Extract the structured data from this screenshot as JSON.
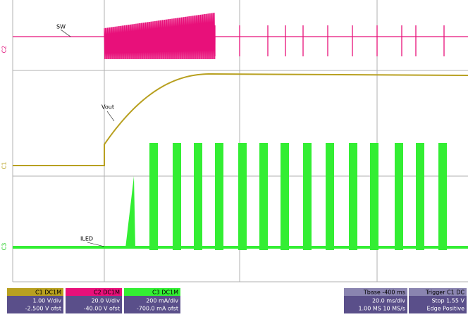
{
  "traces": [
    {
      "label": "SW"
    },
    {
      "label": "Vout"
    },
    {
      "label": "ILED"
    }
  ],
  "channel_markers": [
    "C2",
    "C1",
    "C3"
  ],
  "channels": [
    {
      "header": "C1 DC1M",
      "lines": [
        "1.00 V/div",
        "-2.500 V ofst"
      ]
    },
    {
      "header": "C2 DC1M",
      "lines": [
        "20.0 V/div",
        "-40.00 V ofst"
      ]
    },
    {
      "header": "C3 DC1M",
      "lines": [
        "200 mA/div",
        "-700.0 mA ofst"
      ]
    }
  ],
  "timebase": {
    "header": "Tbase -400 ms",
    "lines": [
      "20.0 ms/div",
      "1.00 MS 10 MS/s"
    ]
  },
  "trigger": {
    "header": "Trigger C1 DC",
    "lines": [
      "Stop 1.55 V",
      "Edge Positive"
    ]
  }
}
